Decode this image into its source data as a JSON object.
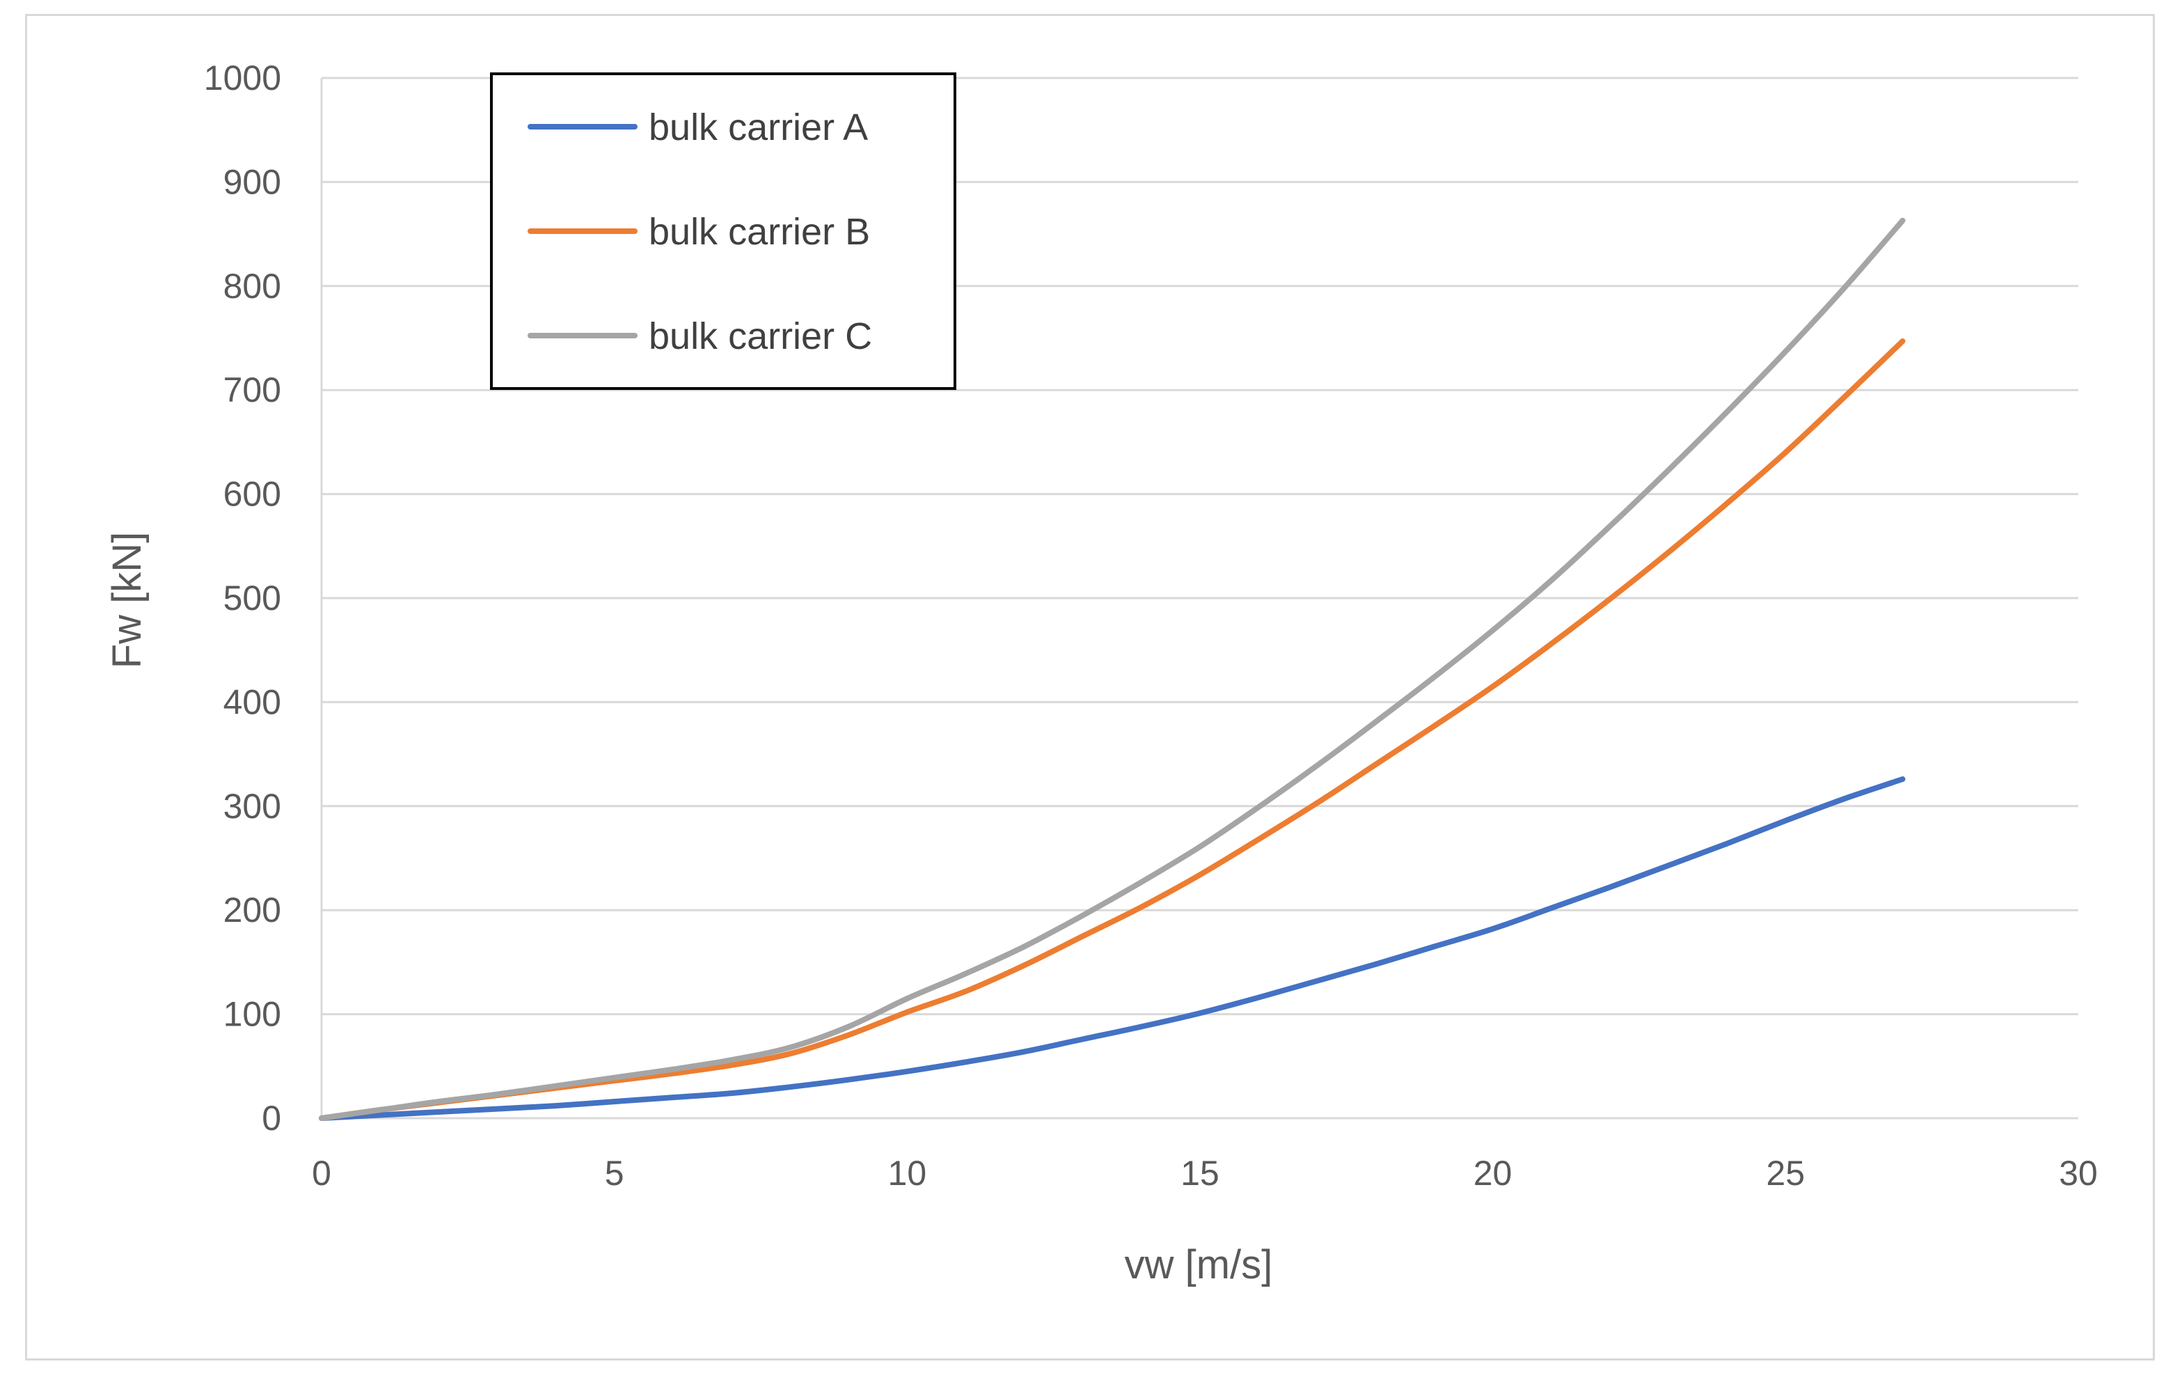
{
  "chart_data": {
    "type": "line",
    "title": "",
    "xlabel": "vw [m/s]",
    "ylabel": "Fw [kN]",
    "xlim": [
      0,
      30
    ],
    "ylim": [
      0,
      1000
    ],
    "xticks": [
      0,
      5,
      10,
      15,
      20,
      25,
      30
    ],
    "yticks": [
      0,
      100,
      200,
      300,
      400,
      500,
      600,
      700,
      800,
      900,
      1000
    ],
    "grid": true,
    "legend_position": "top-left",
    "x": [
      0,
      1,
      2,
      3,
      4,
      5,
      6,
      7,
      8,
      9,
      10,
      11,
      12,
      13,
      14,
      15,
      16,
      17,
      18,
      19,
      20,
      21,
      22,
      23,
      24,
      25,
      26,
      27
    ],
    "series": [
      {
        "name": "bulk carrier A",
        "color": "#4472c4",
        "values": [
          0,
          3,
          6,
          9,
          12,
          16,
          20,
          24,
          30,
          37,
          45,
          54,
          64,
          76,
          88,
          101,
          116,
          132,
          148,
          165,
          182,
          202,
          222,
          243,
          264,
          286,
          307,
          326
        ]
      },
      {
        "name": "bulk carrier B",
        "color": "#ed7d31",
        "values": [
          0,
          8,
          15,
          22,
          29,
          36,
          43,
          51,
          62,
          80,
          102,
          122,
          147,
          175,
          203,
          234,
          268,
          303,
          340,
          377,
          415,
          456,
          499,
          544,
          591,
          640,
          693,
          747
        ]
      },
      {
        "name": "bulk carrier C",
        "color": "#a5a5a5",
        "values": [
          0,
          8,
          16,
          23,
          31,
          39,
          47,
          56,
          68,
          88,
          115,
          139,
          165,
          195,
          227,
          261,
          299,
          339,
          381,
          424,
          469,
          517,
          569,
          623,
          679,
          737,
          798,
          863
        ]
      }
    ]
  }
}
